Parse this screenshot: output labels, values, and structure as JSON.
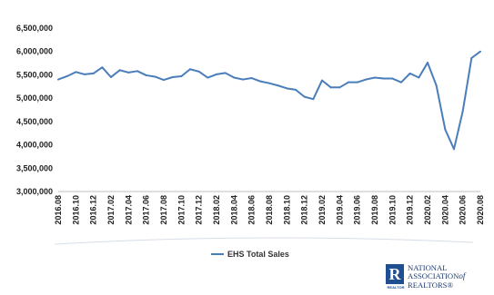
{
  "chart_data": {
    "type": "line",
    "title": "",
    "xlabel": "",
    "ylabel": "",
    "ylim": [
      3000000,
      6500000
    ],
    "y_ticks": [
      "6,500,000",
      "6,000,000",
      "5,500,000",
      "5,000,000",
      "4,500,000",
      "4,000,000",
      "3,500,000",
      "3,000,000"
    ],
    "y_tick_values": [
      6500000,
      6000000,
      5500000,
      5000000,
      4500000,
      4000000,
      3500000,
      3000000
    ],
    "x": [
      "2016.08",
      "2016.09",
      "2016.10",
      "2016.11",
      "2016.12",
      "2017.01",
      "2017.02",
      "2017.03",
      "2017.04",
      "2017.05",
      "2017.06",
      "2017.07",
      "2017.08",
      "2017.09",
      "2017.10",
      "2017.11",
      "2017.12",
      "2018.01",
      "2018.02",
      "2018.03",
      "2018.04",
      "2018.05",
      "2018.06",
      "2018.07",
      "2018.08",
      "2018.09",
      "2018.10",
      "2018.11",
      "2018.12",
      "2019.01",
      "2019.02",
      "2019.03",
      "2019.04",
      "2019.05",
      "2019.06",
      "2019.07",
      "2019.08",
      "2019.09",
      "2019.10",
      "2019.11",
      "2019.12",
      "2020.01",
      "2020.02",
      "2020.03",
      "2020.04",
      "2020.05",
      "2020.06",
      "2020.07",
      "2020.08"
    ],
    "x_tick_labels": [
      "2016.08",
      "2016.10",
      "2016.12",
      "2017.02",
      "2017.04",
      "2017.06",
      "2017.08",
      "2017.10",
      "2017.12",
      "2018.02",
      "2018.04",
      "2018.06",
      "2018.08",
      "2018.10",
      "2018.12",
      "2019.02",
      "2019.04",
      "2019.06",
      "2019.08",
      "2019.10",
      "2019.12",
      "2020.02",
      "2020.04",
      "2020.06",
      "2020.08"
    ],
    "series": [
      {
        "name": "EHS Total Sales",
        "color": "#4a7ebb",
        "values": [
          5400000,
          5470000,
          5560000,
          5510000,
          5530000,
          5660000,
          5450000,
          5600000,
          5550000,
          5580000,
          5490000,
          5460000,
          5390000,
          5450000,
          5470000,
          5620000,
          5570000,
          5440000,
          5510000,
          5540000,
          5440000,
          5400000,
          5430000,
          5360000,
          5320000,
          5270000,
          5210000,
          5180000,
          5030000,
          4980000,
          5380000,
          5230000,
          5230000,
          5340000,
          5340000,
          5400000,
          5440000,
          5420000,
          5420000,
          5340000,
          5530000,
          5440000,
          5760000,
          5270000,
          4330000,
          3910000,
          4720000,
          5860000,
          6000000
        ]
      }
    ],
    "grid": false,
    "legend": "bottom-center"
  },
  "logo": {
    "mark": "R",
    "realtor_tag": "REALTOR",
    "line1": "NATIONAL",
    "line2_pre": "ASSOCIATION",
    "line2_of": "of",
    "line3": "REALTORS®"
  }
}
